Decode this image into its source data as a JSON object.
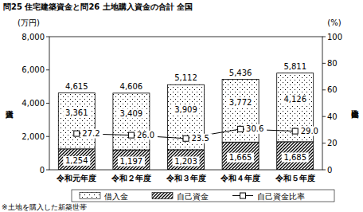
{
  "chart_data": {
    "type": "bar",
    "title": "問25 住宅建築資金と問26 土地購入資金の合計 全国",
    "ylabel": "購入資金",
    "yunit": "(万円)",
    "y2label": "自己資金比率",
    "y2unit": "(%)",
    "footnote": "※土地を購入した新築世帯",
    "categories": [
      "令和元年度",
      "令和２年度",
      "令和３年度",
      "令和４年度",
      "令和５年度"
    ],
    "stacked": true,
    "data_labels": true,
    "legend": "bottom",
    "grid": false,
    "ylim": [
      0,
      8000
    ],
    "yticks": [
      0,
      {
        "value": 2000,
        "label": "2,000"
      },
      {
        "value": 4000,
        "label": "4,000"
      },
      {
        "value": 6000,
        "label": "6,000"
      },
      {
        "value": 8000,
        "label": "8,000"
      }
    ],
    "y2lim": [
      0,
      100
    ],
    "y2ticks": [
      0,
      20,
      40,
      60,
      80,
      100
    ],
    "series": [
      {
        "name": "借入金",
        "type": "bar",
        "color": "#000000",
        "values": [
          3361,
          3409,
          3909,
          3772,
          4126
        ],
        "value_labels": [
          "3,361",
          "3,409",
          "3,909",
          "3,772",
          "4,126"
        ]
      },
      {
        "name": "自己資金",
        "type": "bar",
        "color": "#000000",
        "values": [
          1254,
          1197,
          1203,
          1665,
          1685
        ],
        "value_labels": [
          "1,254",
          "1,197",
          "1,203",
          "1,665",
          "1,685"
        ]
      },
      {
        "name": "自己資金比率",
        "type": "line",
        "axis": "y2",
        "color": "#000000",
        "marker": "square",
        "line_style": "solid",
        "values": [
          27.2,
          26.0,
          23.5,
          30.6,
          29.0
        ],
        "value_labels": [
          "27.2",
          "26.0",
          "23.5",
          "30.6",
          "29.0"
        ]
      }
    ],
    "totals": {
      "values": [
        4615,
        4606,
        5112,
        5436,
        5811
      ],
      "value_labels": [
        "4,615",
        "4,606",
        "5,112",
        "5,436",
        "5,811"
      ]
    }
  }
}
